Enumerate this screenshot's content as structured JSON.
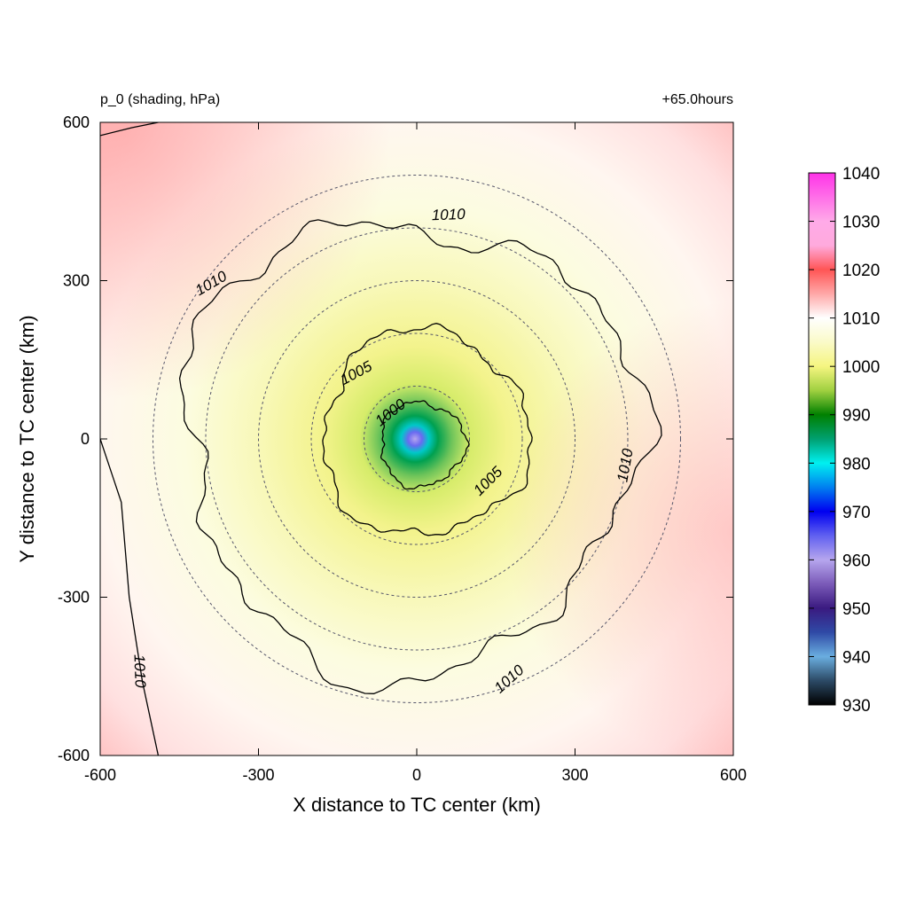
{
  "header": {
    "left_title": "p_0 (shading, hPa)",
    "right_title": "+65.0hours"
  },
  "chart_data": {
    "type": "heatmap",
    "variable": "p_0",
    "units": "hPa",
    "xlabel": "X distance to TC center (km)",
    "ylabel": "Y distance to TC center (km)",
    "xlim": [
      -600,
      600
    ],
    "ylim": [
      -600,
      600
    ],
    "x_ticks": [
      -600,
      -300,
      0,
      300,
      600
    ],
    "y_ticks": [
      -600,
      -300,
      0,
      300,
      600
    ],
    "x_tick_labels": [
      "-600",
      "-300",
      "0",
      "300",
      "600"
    ],
    "y_tick_labels": [
      "-600",
      "-300",
      "0",
      "300",
      "600"
    ],
    "center_value": 960,
    "contours": [
      {
        "level": 1000,
        "label": "1000",
        "approx_radius_km": 80
      },
      {
        "level": 1005,
        "label": "1005",
        "approx_radius_km": 195
      },
      {
        "level": 1010,
        "label": "1010",
        "approx_radius_km": 430
      }
    ],
    "contour_labels": [
      {
        "text": "1010",
        "x": 60,
        "y": 425
      },
      {
        "text": "1010",
        "x": -390,
        "y": 295
      },
      {
        "text": "1010",
        "x": 395,
        "y": -50
      },
      {
        "text": "1010",
        "x": 175,
        "y": -455
      },
      {
        "text": "1010",
        "x": -525,
        "y": -440
      },
      {
        "text": "1005",
        "x": -115,
        "y": 125
      },
      {
        "text": "1005",
        "x": 135,
        "y": -80
      },
      {
        "text": "1000",
        "x": -50,
        "y": 50
      }
    ],
    "range_rings_km": [
      100,
      200,
      300,
      400,
      500
    ],
    "colorbar": {
      "min": 930,
      "max": 1040,
      "tick_labels": [
        "1040",
        "1030",
        "1020",
        "1010",
        "1000",
        "990",
        "980",
        "970",
        "960",
        "950",
        "940",
        "930"
      ],
      "ticks": [
        1040,
        1030,
        1020,
        1010,
        1000,
        990,
        980,
        970,
        960,
        950,
        940,
        930
      ],
      "stops": [
        {
          "value": 930,
          "color": "#000000"
        },
        {
          "value": 935,
          "color": "#2c4a66"
        },
        {
          "value": 940,
          "color": "#6aaee0"
        },
        {
          "value": 945,
          "color": "#2f4aa6"
        },
        {
          "value": 950,
          "color": "#3a1a80"
        },
        {
          "value": 955,
          "color": "#7a5ab8"
        },
        {
          "value": 960,
          "color": "#b6a6ee"
        },
        {
          "value": 965,
          "color": "#6060f0"
        },
        {
          "value": 970,
          "color": "#0000f0"
        },
        {
          "value": 975,
          "color": "#0080f0"
        },
        {
          "value": 980,
          "color": "#00f0f0"
        },
        {
          "value": 985,
          "color": "#00a070"
        },
        {
          "value": 990,
          "color": "#008000"
        },
        {
          "value": 995,
          "color": "#a0d040"
        },
        {
          "value": 1000,
          "color": "#f5f580"
        },
        {
          "value": 1005,
          "color": "#fafac8"
        },
        {
          "value": 1010,
          "color": "#ffffff"
        },
        {
          "value": 1015,
          "color": "#ffa8a8"
        },
        {
          "value": 1020,
          "color": "#ff5555"
        },
        {
          "value": 1025,
          "color": "#ffaadd"
        },
        {
          "value": 1030,
          "color": "#ffaae8"
        },
        {
          "value": 1040,
          "color": "#ff33e8"
        }
      ]
    }
  }
}
